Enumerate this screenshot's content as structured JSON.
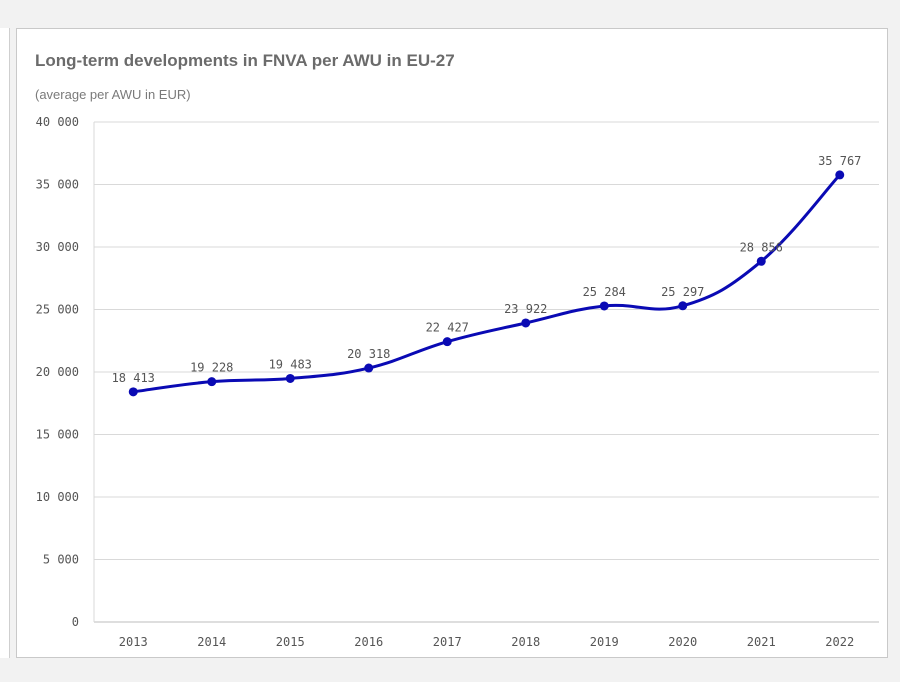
{
  "chart_data": {
    "type": "line",
    "title": "Long-term developments in FNVA per AWU in  EU-27",
    "subtitle": "(average per AWU in EUR)",
    "xlabel": "",
    "ylabel": "",
    "categories": [
      "2013",
      "2014",
      "2015",
      "2016",
      "2017",
      "2018",
      "2019",
      "2020",
      "2021",
      "2022"
    ],
    "series": [
      {
        "values": [
          18413,
          19228,
          19483,
          20318,
          22427,
          23922,
          25284,
          25297,
          28856,
          35767
        ],
        "data_labels": [
          "18 413",
          "19 228",
          "19 483",
          "20 318",
          "22 427",
          "23 922",
          "25 284",
          "25 297",
          "28 856",
          "35 767"
        ],
        "color": "#0a0ab4"
      }
    ],
    "ylim": [
      0,
      40000
    ],
    "yticks": [
      0,
      5000,
      10000,
      15000,
      20000,
      25000,
      30000,
      35000,
      40000
    ],
    "ytick_labels": [
      "0",
      "5 000",
      "10 000",
      "15 000",
      "20 000",
      "25 000",
      "30 000",
      "35 000",
      "40 000"
    ],
    "grid": true,
    "legend": "none"
  }
}
